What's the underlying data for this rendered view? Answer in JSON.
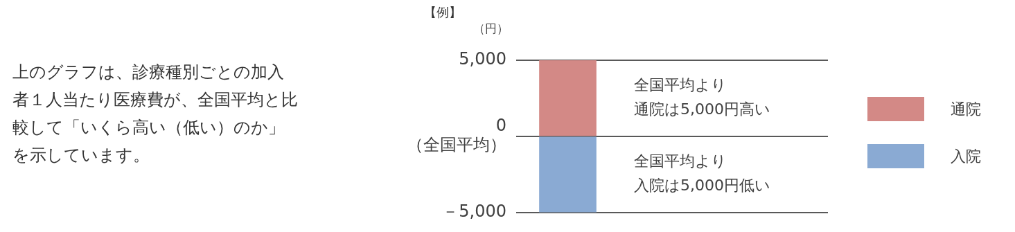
{
  "chart_data": {
    "type": "bar",
    "title": "【例】",
    "ylabel": "（円）",
    "categories": [
      null
    ],
    "stacked": true,
    "series": [
      {
        "name": "通院",
        "color": "#d38986",
        "values": [
          5000
        ]
      },
      {
        "name": "入院",
        "color": "#8aaad3",
        "values": [
          -5000
        ]
      }
    ],
    "ylim": [
      -5000,
      5000
    ],
    "yticks": [
      {
        "value": 5000,
        "label": "5,000"
      },
      {
        "value": 0,
        "label": "0\n（全国平均）"
      },
      {
        "value": -5000,
        "label": "－5,000"
      }
    ],
    "grid": "y",
    "legend": "right",
    "annotations": [
      "上のグラフは、診療種別ごとの加入者１人当たり医療費が、全国平均と比較して「いくら高い（低い）のか」を示しています。",
      "全国平均より",
      "通院は5,000円高い",
      "全国平均より",
      "入院は5,000円低い"
    ]
  }
}
